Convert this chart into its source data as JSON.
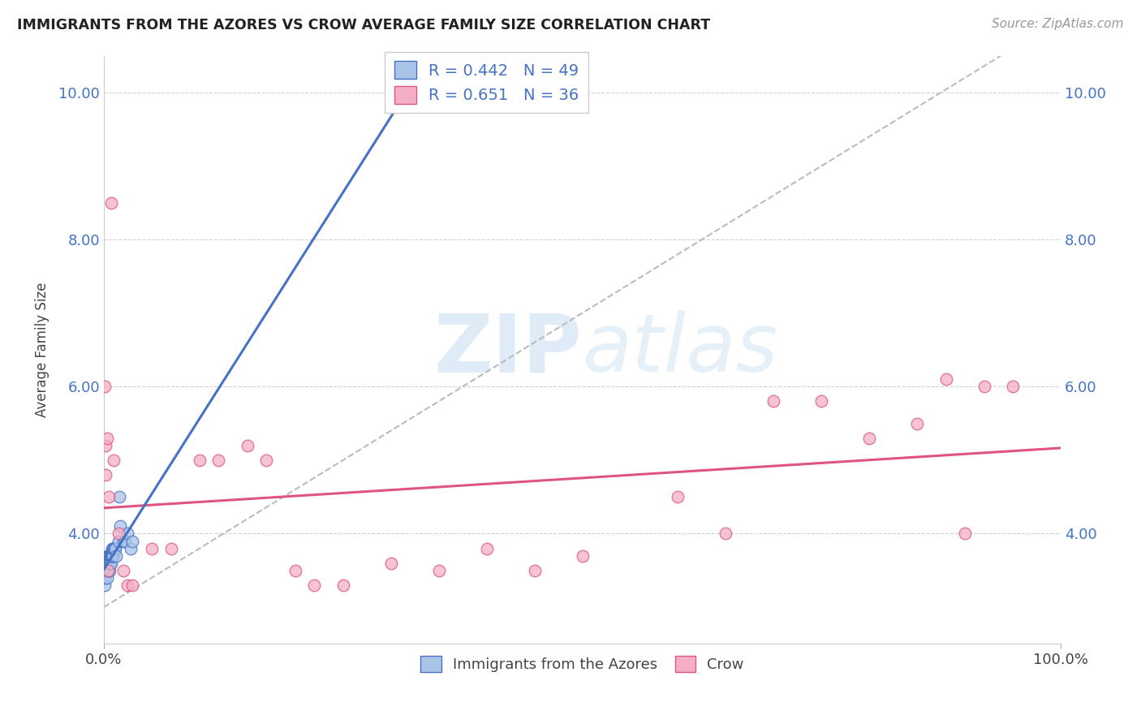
{
  "title": "IMMIGRANTS FROM THE AZORES VS CROW AVERAGE FAMILY SIZE CORRELATION CHART",
  "source": "Source: ZipAtlas.com",
  "ylabel": "Average Family Size",
  "watermark": "ZIPatlas",
  "legend_label1": "Immigrants from the Azores",
  "legend_label2": "Crow",
  "R1": 0.442,
  "N1": 49,
  "R2": 0.651,
  "N2": 36,
  "color1": "#aac4e8",
  "color2": "#f4afc4",
  "line_color1": "#4472c4",
  "line_color2": "#e05580",
  "xlim": [
    0,
    100
  ],
  "ylim": [
    2.5,
    10.5
  ],
  "yticks": [
    4.0,
    6.0,
    8.0,
    10.0
  ],
  "background_color": "#ffffff",
  "grid_color": "#cccccc",
  "azores_x": [
    0.05,
    0.08,
    0.1,
    0.12,
    0.15,
    0.18,
    0.2,
    0.22,
    0.25,
    0.28,
    0.3,
    0.32,
    0.35,
    0.38,
    0.4,
    0.42,
    0.45,
    0.48,
    0.5,
    0.52,
    0.55,
    0.58,
    0.6,
    0.62,
    0.65,
    0.68,
    0.7,
    0.72,
    0.75,
    0.78,
    0.8,
    0.82,
    0.85,
    0.88,
    0.9,
    0.92,
    0.95,
    1.0,
    1.1,
    1.2,
    1.3,
    1.5,
    1.7,
    2.0,
    2.2,
    2.5,
    2.8,
    3.0,
    1.6
  ],
  "azores_y": [
    3.3,
    3.4,
    3.5,
    3.5,
    3.6,
    3.6,
    3.5,
    3.5,
    3.6,
    3.5,
    3.7,
    3.5,
    3.6,
    3.4,
    3.5,
    3.6,
    3.7,
    3.6,
    3.7,
    3.5,
    3.6,
    3.5,
    3.6,
    3.7,
    3.7,
    3.7,
    3.6,
    3.7,
    3.7,
    3.6,
    3.7,
    3.7,
    3.8,
    3.7,
    3.7,
    3.7,
    3.8,
    3.8,
    3.8,
    3.8,
    3.7,
    3.9,
    4.1,
    3.9,
    3.9,
    4.0,
    3.8,
    3.9,
    4.5
  ],
  "crow_x": [
    0.15,
    0.2,
    0.3,
    0.5,
    0.8,
    1.0,
    1.5,
    2.0,
    2.5,
    3.0,
    5.0,
    7.0,
    10.0,
    12.0,
    15.0,
    17.0,
    20.0,
    22.0,
    25.0,
    30.0,
    35.0,
    40.0,
    45.0,
    50.0,
    60.0,
    65.0,
    70.0,
    75.0,
    80.0,
    85.0,
    88.0,
    90.0,
    92.0,
    95.0,
    0.1,
    0.4
  ],
  "crow_y": [
    4.8,
    5.2,
    5.3,
    4.5,
    8.5,
    5.0,
    4.0,
    3.5,
    3.3,
    3.3,
    3.8,
    3.8,
    5.0,
    5.0,
    5.2,
    5.0,
    3.5,
    3.3,
    3.3,
    3.6,
    3.5,
    3.8,
    3.5,
    3.7,
    4.5,
    4.0,
    5.8,
    5.8,
    5.3,
    5.5,
    6.1,
    4.0,
    6.0,
    6.0,
    6.0,
    3.5
  ]
}
